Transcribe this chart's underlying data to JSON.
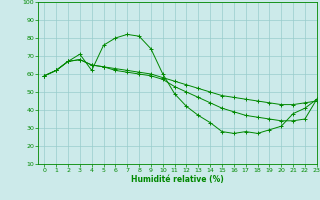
{
  "xlabel": "Humidité relative (%)",
  "bg_color": "#cceaea",
  "grid_color": "#99cccc",
  "line_color": "#008800",
  "xlim": [
    -0.5,
    23
  ],
  "ylim": [
    10,
    100
  ],
  "yticks": [
    10,
    20,
    30,
    40,
    50,
    60,
    70,
    80,
    90,
    100
  ],
  "xticks": [
    0,
    1,
    2,
    3,
    4,
    5,
    6,
    7,
    8,
    9,
    10,
    11,
    12,
    13,
    14,
    15,
    16,
    17,
    18,
    19,
    20,
    21,
    22,
    23
  ],
  "series": [
    [
      59,
      62,
      67,
      71,
      62,
      76,
      80,
      82,
      81,
      74,
      60,
      49,
      42,
      37,
      33,
      28,
      27,
      28,
      27,
      29,
      31,
      38,
      41,
      46
    ],
    [
      59,
      62,
      67,
      68,
      65,
      64,
      63,
      62,
      61,
      60,
      58,
      56,
      54,
      52,
      50,
      48,
      47,
      46,
      45,
      44,
      43,
      43,
      44,
      45
    ],
    [
      59,
      62,
      67,
      68,
      65,
      64,
      62,
      61,
      60,
      59,
      57,
      53,
      50,
      47,
      44,
      41,
      39,
      37,
      36,
      35,
      34,
      34,
      35,
      46
    ]
  ]
}
